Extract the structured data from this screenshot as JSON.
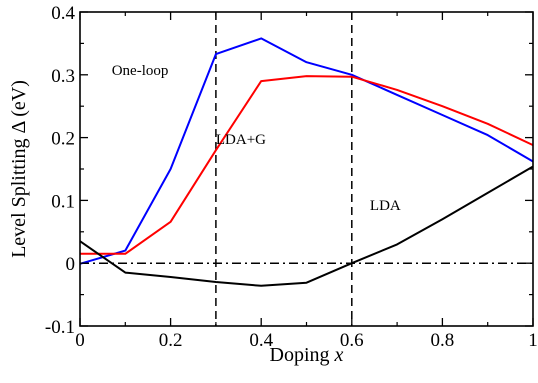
{
  "chart_data": {
    "type": "line",
    "xlabel": "Doping",
    "xlabel_var": "x",
    "ylabel": "Level Splitting Δ (eV)",
    "xlim": [
      0,
      1
    ],
    "ylim": [
      -0.1,
      0.4
    ],
    "x_ticks": [
      0,
      0.2,
      0.4,
      0.6,
      0.8,
      1
    ],
    "x_tick_labels": [
      "0",
      "0.2",
      "0.4",
      "0.6",
      "0.8",
      "1"
    ],
    "y_ticks": [
      -0.1,
      0,
      0.1,
      0.2,
      0.3,
      0.4
    ],
    "y_tick_labels": [
      "-0.1",
      "0",
      "0.1",
      "0.2",
      "0.3",
      "0.4"
    ],
    "grid": false,
    "series": [
      {
        "name": "One-loop",
        "color": "#0000ff",
        "x": [
          0,
          0.1,
          0.2,
          0.3,
          0.4,
          0.5,
          0.6,
          0.7,
          0.8,
          0.9,
          1.0
        ],
        "y": [
          -0.001,
          0.02,
          0.15,
          0.333,
          0.358,
          0.32,
          0.3,
          0.268,
          0.236,
          0.204,
          0.162
        ]
      },
      {
        "name": "LDA+G",
        "color": "#ff0000",
        "x": [
          0,
          0.1,
          0.2,
          0.3,
          0.4,
          0.5,
          0.6,
          0.7,
          0.8,
          0.9,
          1.0
        ],
        "y": [
          0.015,
          0.015,
          0.066,
          0.18,
          0.29,
          0.298,
          0.297,
          0.276,
          0.25,
          0.222,
          0.188
        ]
      },
      {
        "name": "LDA",
        "color": "#000000",
        "x": [
          0,
          0.1,
          0.2,
          0.3,
          0.4,
          0.5,
          0.6,
          0.7,
          0.8,
          0.9,
          1.0
        ],
        "y": [
          0.035,
          -0.015,
          -0.022,
          -0.03,
          -0.036,
          -0.031,
          0.0,
          0.03,
          0.07,
          0.112,
          0.154
        ]
      }
    ],
    "reference_lines": {
      "vertical_dashed": [
        0.3,
        0.6
      ],
      "horizontal_dashdot": [
        0
      ]
    },
    "annotations": [
      {
        "text": "One-loop",
        "x": 0.07,
        "y": 0.3
      },
      {
        "text": "LDA+G",
        "x": 0.3,
        "y": 0.19
      },
      {
        "text": "LDA",
        "x": 0.64,
        "y": 0.085
      }
    ]
  }
}
